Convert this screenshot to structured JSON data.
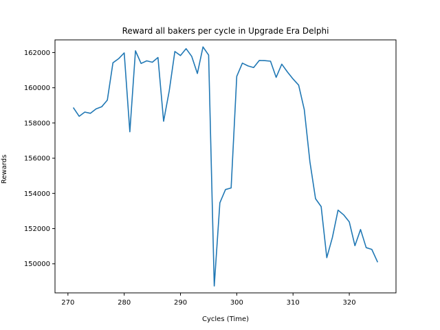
{
  "chart_data": {
    "type": "line",
    "title": "Reward all bakers per cycle in Upgrade Era Delphi",
    "xlabel": "Cycles (Time)",
    "ylabel": "Rewards",
    "xlim": [
      267.7,
      328.3
    ],
    "ylim": [
      148350,
      162720
    ],
    "xticks": [
      270,
      280,
      290,
      300,
      310,
      320
    ],
    "yticks": [
      150000,
      152000,
      154000,
      156000,
      158000,
      160000,
      162000
    ],
    "grid": false,
    "legend": "none",
    "series": [
      {
        "color": "#1f77b4",
        "x": [
          271,
          272,
          273,
          274,
          275,
          276,
          277,
          278,
          279,
          280,
          281,
          282,
          283,
          284,
          285,
          286,
          287,
          288,
          289,
          290,
          291,
          292,
          293,
          294,
          295,
          296,
          297,
          298,
          299,
          300,
          301,
          302,
          303,
          304,
          305,
          306,
          307,
          308,
          309,
          310,
          311,
          312,
          313,
          314,
          315,
          316,
          317,
          318,
          319,
          320,
          321,
          322,
          323,
          324,
          325
        ],
        "y": [
          158850,
          158380,
          158620,
          158550,
          158800,
          158920,
          159300,
          161420,
          161650,
          161980,
          157500,
          162100,
          161380,
          161530,
          161450,
          161720,
          158100,
          159820,
          162060,
          161830,
          162220,
          161780,
          160810,
          162320,
          161860,
          148740,
          153470,
          154220,
          154310,
          160650,
          161400,
          161240,
          161150,
          161550,
          161540,
          161510,
          160590,
          161340,
          160900,
          160500,
          160150,
          158760,
          155800,
          153700,
          153250,
          150350,
          151500,
          153050,
          152780,
          152380,
          151030,
          151950,
          150920,
          150820,
          150120
        ]
      }
    ]
  }
}
